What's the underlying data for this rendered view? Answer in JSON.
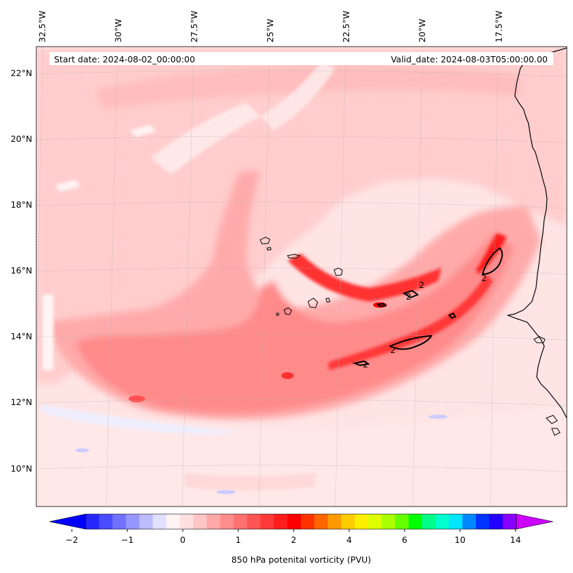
{
  "header": {
    "start_date": "Start date: 2024-08-02_00:00:00",
    "valid_date": "Valid_date: 2024-08-03T05:00:00.00"
  },
  "map": {
    "longitude_labels": [
      "32.5°W",
      "30°W",
      "27.5°W",
      "25°W",
      "22.5°W",
      "20°W",
      "17.5°W"
    ],
    "latitude_labels": [
      "22°N",
      "20°N",
      "18°N",
      "16°N",
      "14°N",
      "12°N",
      "10°N"
    ],
    "contour_value_label": "2",
    "colors": {
      "coastline": "#000000",
      "gridline": "#b0b0b0"
    }
  },
  "colorbar": {
    "label": "850 hPa potenital vorticity (PVU)",
    "tick_labels": [
      "−2",
      "−1",
      "0",
      "1",
      "2",
      "4",
      "6",
      "10",
      "14"
    ],
    "colors": [
      "#0000ff",
      "#2626ff",
      "#4b4bff",
      "#7171ff",
      "#9696ff",
      "#bcbcff",
      "#e1e1ff",
      "#fff3f3",
      "#ffe0e0",
      "#ffc4c4",
      "#ffa8a8",
      "#ff8c8c",
      "#ff7070",
      "#ff5454",
      "#ff3838",
      "#ff1c1c",
      "#ff0000",
      "#ff3300",
      "#ff6600",
      "#ff9900",
      "#ffcc00",
      "#ffee00",
      "#ddff00",
      "#aaff00",
      "#66ff00",
      "#00ff00",
      "#00ff88",
      "#00ffcc",
      "#00e5ff",
      "#0088ff",
      "#0033ff",
      "#2200ff",
      "#8800ff",
      "#cc00ff"
    ]
  }
}
